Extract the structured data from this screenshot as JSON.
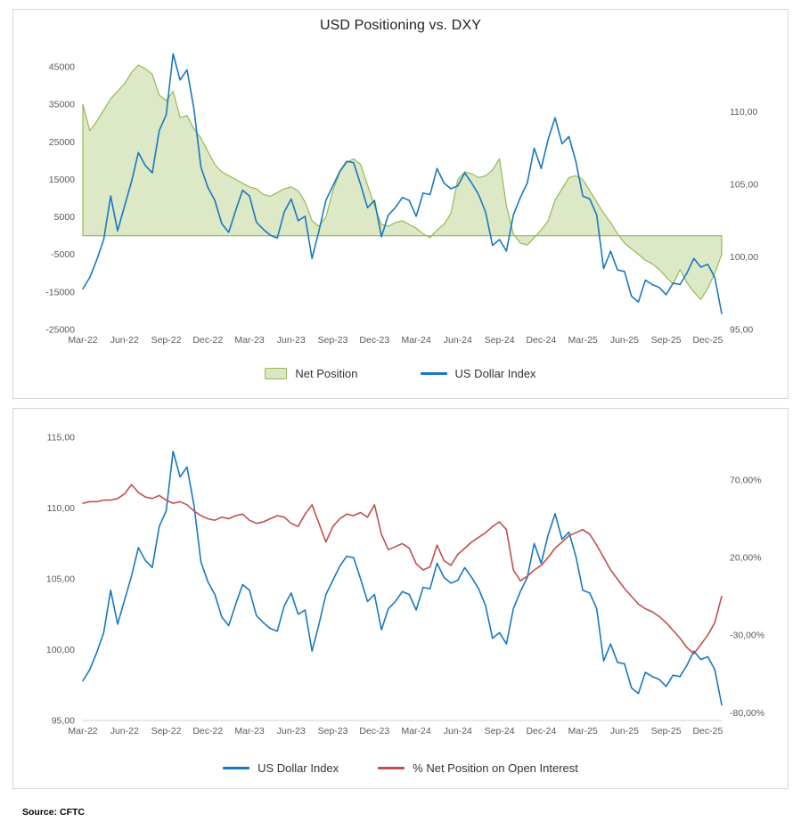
{
  "source_note": "Source: CFTC",
  "chart_data": [
    {
      "id": "usd-positioning-vs-dxy",
      "type": "area+line combo",
      "title": "USD Positioning vs. DXY",
      "x_tick_step": 6,
      "x_labels": [
        "Mar-22",
        "Jun-22",
        "Sep-22",
        "Dec-22",
        "Mar-23",
        "Jun-23",
        "Sep-23",
        "Dec-23",
        "Mar-24",
        "Jun-24",
        "Sep-24",
        "Dec-24",
        "Mar-25",
        "Jun-25",
        "Sep-25",
        "Dec-25"
      ],
      "left_axis": {
        "range": [
          -25000,
          50000
        ],
        "ticks": [
          45000,
          35000,
          25000,
          15000,
          5000,
          -5000,
          -15000,
          -25000
        ],
        "tick_labels": [
          "45000",
          "35000",
          "25000",
          "15000",
          "5000",
          "-5000",
          "-15000",
          "-25000"
        ]
      },
      "right_axis": {
        "range": [
          95,
          114.4
        ],
        "ticks": [
          110,
          105,
          100,
          95
        ],
        "tick_labels": [
          "110,00",
          "105,00",
          "100,00",
          "95,00"
        ]
      },
      "zero_line": true,
      "baseline": false,
      "legend_position": "bottom",
      "grid": false,
      "series": [
        {
          "name": "Net Position",
          "type": "area",
          "axis": "left",
          "stroke": "#94ba55",
          "fill": "#dbe7c3",
          "values": [
            35000,
            28000,
            30500,
            33500,
            36500,
            38500,
            40500,
            43500,
            45500,
            44500,
            43000,
            37500,
            36000,
            38500,
            31500,
            32000,
            28500,
            26000,
            22500,
            19000,
            17000,
            16000,
            15000,
            14000,
            13000,
            12500,
            11000,
            10500,
            11500,
            12500,
            13000,
            12000,
            9000,
            4000,
            2500,
            5000,
            12000,
            17000,
            19500,
            20500,
            19000,
            13500,
            8000,
            3000,
            2500,
            3500,
            4000,
            3000,
            2000,
            500,
            -500,
            1500,
            3000,
            6000,
            15000,
            17000,
            16500,
            15500,
            16000,
            17500,
            20500,
            8000,
            500,
            -2000,
            -2500,
            -500,
            1500,
            4000,
            9500,
            12500,
            15500,
            16000,
            15000,
            12000,
            9000,
            6000,
            3500,
            500,
            -2000,
            -3500,
            -5000,
            -6500,
            -7500,
            -9000,
            -11000,
            -13000,
            -9000,
            -12500,
            -15000,
            -17000,
            -14000,
            -10000,
            -5000
          ]
        },
        {
          "name": "US Dollar Index",
          "type": "line",
          "axis": "right",
          "stroke": "#1878bf",
          "values": [
            97.8,
            98.6,
            99.8,
            101.2,
            104.2,
            101.8,
            103.5,
            105.2,
            107.2,
            106.3,
            105.8,
            108.7,
            109.8,
            114,
            112.2,
            112.9,
            110.2,
            106.2,
            104.8,
            103.9,
            102.3,
            101.7,
            103.2,
            104.6,
            104.2,
            102.4,
            101.9,
            101.5,
            101.3,
            103.1,
            104,
            102.5,
            102.8,
            99.9,
            101.8,
            103.9,
            104.9,
            105.9,
            106.6,
            106.5,
            105,
            103.4,
            103.9,
            101.4,
            102.9,
            103.4,
            104.1,
            103.9,
            102.8,
            104.4,
            104.3,
            106.1,
            105.1,
            104.7,
            104.9,
            105.8,
            105.1,
            104.3,
            103.1,
            100.8,
            101.2,
            100.4,
            102.9,
            104.1,
            105.1,
            107.5,
            106.1,
            108.1,
            109.6,
            107.8,
            108.3,
            106.6,
            104.2,
            104,
            102.9,
            99.2,
            100.4,
            99.1,
            99,
            97.3,
            96.9,
            98.4,
            98.1,
            97.9,
            97.4,
            98.2,
            98.1,
            98.9,
            99.9,
            99.3,
            99.5,
            98.6,
            96.1
          ]
        }
      ]
    },
    {
      "id": "dxy-vs-pct-net-position",
      "type": "line",
      "title": "",
      "x_tick_step": 6,
      "x_labels": [
        "Mar-22",
        "Jun-22",
        "Sep-22",
        "Dec-22",
        "Mar-23",
        "Jun-23",
        "Sep-23",
        "Dec-23",
        "Mar-24",
        "Jun-24",
        "Sep-24",
        "Dec-24",
        "Mar-25",
        "Jun-25",
        "Sep-25",
        "Dec-25"
      ],
      "left_axis": {
        "range": [
          95,
          115
        ],
        "ticks": [
          115,
          110,
          105,
          100,
          95
        ],
        "tick_labels": [
          "115,00",
          "110,00",
          "105,00",
          "100,00",
          "95,00"
        ]
      },
      "right_axis": {
        "range": [
          -85,
          97.5
        ],
        "ticks": [
          70,
          20,
          -30,
          -80
        ],
        "tick_labels": [
          "70,00%",
          "20,00%",
          "-30,00%",
          "-80,00%"
        ]
      },
      "zero_line": false,
      "baseline": true,
      "legend_position": "bottom",
      "grid": false,
      "series": [
        {
          "name": "US Dollar Index",
          "type": "line",
          "axis": "left",
          "stroke": "#1878bf",
          "values": [
            97.8,
            98.6,
            99.8,
            101.2,
            104.2,
            101.8,
            103.5,
            105.2,
            107.2,
            106.3,
            105.8,
            108.7,
            109.8,
            114,
            112.2,
            112.9,
            110.2,
            106.2,
            104.8,
            103.9,
            102.3,
            101.7,
            103.2,
            104.6,
            104.2,
            102.4,
            101.9,
            101.5,
            101.3,
            103.1,
            104,
            102.5,
            102.8,
            99.9,
            101.8,
            103.9,
            104.9,
            105.9,
            106.6,
            106.5,
            105,
            103.4,
            103.9,
            101.4,
            102.9,
            103.4,
            104.1,
            103.9,
            102.8,
            104.4,
            104.3,
            106.1,
            105.1,
            104.7,
            104.9,
            105.8,
            105.1,
            104.3,
            103.1,
            100.8,
            101.2,
            100.4,
            102.9,
            104.1,
            105.1,
            107.5,
            106.1,
            108.1,
            109.6,
            107.8,
            108.3,
            106.6,
            104.2,
            104,
            102.9,
            99.2,
            100.4,
            99.1,
            99,
            97.3,
            96.9,
            98.4,
            98.1,
            97.9,
            97.4,
            98.2,
            98.1,
            98.9,
            99.9,
            99.3,
            99.5,
            98.6,
            96.1
          ]
        },
        {
          "name": "% Net Position on Open Interest",
          "type": "line",
          "axis": "right",
          "stroke": "#c0504d",
          "values": [
            55,
            56,
            56,
            57,
            57,
            58,
            61,
            67,
            62,
            59,
            58,
            60,
            57,
            55,
            56,
            54,
            50,
            47,
            45,
            44,
            46,
            45,
            47,
            48,
            44,
            42,
            43,
            45,
            47,
            46,
            42,
            40,
            48,
            54,
            42,
            30,
            40,
            45,
            48,
            47,
            49,
            46,
            54,
            35,
            25,
            27,
            29,
            26,
            16,
            12,
            14,
            28,
            18,
            15,
            22,
            26,
            30,
            33,
            36,
            40,
            43,
            38,
            12,
            5,
            8,
            12,
            15,
            20,
            26,
            30,
            34,
            36,
            38,
            35,
            28,
            20,
            12,
            6,
            0,
            -5,
            -10,
            -13,
            -15,
            -18,
            -22,
            -27,
            -32,
            -38,
            -42,
            -36,
            -30,
            -22,
            -5
          ]
        }
      ]
    }
  ]
}
